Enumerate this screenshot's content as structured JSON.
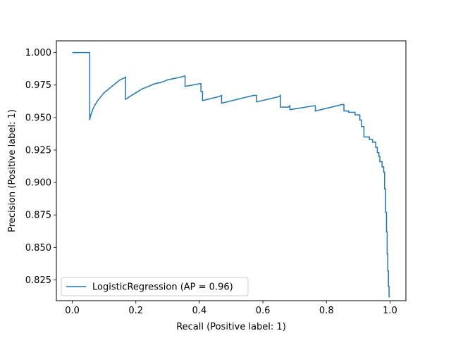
{
  "chart_data": {
    "type": "line",
    "line_style": "step",
    "xlabel": "Recall (Positive label: 1)",
    "ylabel": "Precision (Positive label: 1)",
    "xlim": [
      -0.05,
      1.05
    ],
    "ylim": [
      0.809,
      1.009
    ],
    "xticks": [
      0.0,
      0.2,
      0.4,
      0.6,
      0.8,
      1.0
    ],
    "xtick_labels": [
      "0.0",
      "0.2",
      "0.4",
      "0.6",
      "0.8",
      "1.0"
    ],
    "yticks": [
      0.825,
      0.85,
      0.875,
      0.9,
      0.925,
      0.95,
      0.975,
      1.0
    ],
    "ytick_labels": [
      "0.825",
      "0.850",
      "0.875",
      "0.900",
      "0.925",
      "0.950",
      "0.975",
      "1.000"
    ],
    "grid": false,
    "legend_position": "lower-left",
    "color": "#1f77b4",
    "series": [
      {
        "name": "LogisticRegression (AP = 0.96)",
        "x": [
          0.0,
          0.055,
          0.055,
          0.057,
          0.06,
          0.063,
          0.066,
          0.07,
          0.075,
          0.08,
          0.09,
          0.1,
          0.11,
          0.12,
          0.13,
          0.14,
          0.15,
          0.16,
          0.168,
          0.168,
          0.18,
          0.2,
          0.22,
          0.24,
          0.26,
          0.28,
          0.3,
          0.32,
          0.34,
          0.355,
          0.355,
          0.38,
          0.4,
          0.405,
          0.405,
          0.41,
          0.41,
          0.46,
          0.47,
          0.47,
          0.57,
          0.58,
          0.58,
          0.65,
          0.655,
          0.655,
          0.68,
          0.685,
          0.685,
          0.76,
          0.765,
          0.765,
          0.85,
          0.855,
          0.855,
          0.87,
          0.87,
          0.89,
          0.89,
          0.905,
          0.905,
          0.91,
          0.91,
          0.918,
          0.918,
          0.935,
          0.935,
          0.945,
          0.945,
          0.955,
          0.955,
          0.96,
          0.96,
          0.965,
          0.965,
          0.968,
          0.968,
          0.975,
          0.975,
          0.98,
          0.98,
          0.983,
          0.983,
          0.986,
          0.986,
          0.989,
          0.989,
          0.991,
          0.991,
          0.993,
          0.993,
          0.995,
          0.995,
          0.997,
          0.997,
          0.999,
          0.999,
          1.0
        ],
        "y": [
          1.0,
          1.0,
          0.948,
          0.951,
          0.953,
          0.955,
          0.957,
          0.959,
          0.961,
          0.963,
          0.966,
          0.969,
          0.971,
          0.973,
          0.975,
          0.977,
          0.979,
          0.98,
          0.981,
          0.964,
          0.966,
          0.969,
          0.972,
          0.974,
          0.976,
          0.977,
          0.979,
          0.98,
          0.981,
          0.982,
          0.974,
          0.975,
          0.976,
          0.976,
          0.97,
          0.97,
          0.963,
          0.966,
          0.967,
          0.961,
          0.967,
          0.967,
          0.962,
          0.966,
          0.967,
          0.958,
          0.958,
          0.959,
          0.956,
          0.959,
          0.959,
          0.955,
          0.96,
          0.96,
          0.955,
          0.955,
          0.954,
          0.954,
          0.952,
          0.952,
          0.948,
          0.948,
          0.943,
          0.943,
          0.935,
          0.935,
          0.933,
          0.933,
          0.931,
          0.931,
          0.927,
          0.927,
          0.923,
          0.923,
          0.92,
          0.92,
          0.916,
          0.916,
          0.912,
          0.912,
          0.908,
          0.908,
          0.895,
          0.895,
          0.877,
          0.877,
          0.862,
          0.862,
          0.845,
          0.845,
          0.832,
          0.832,
          0.82,
          0.82,
          0.812,
          0.812,
          0.812,
          0.812
        ]
      }
    ]
  }
}
